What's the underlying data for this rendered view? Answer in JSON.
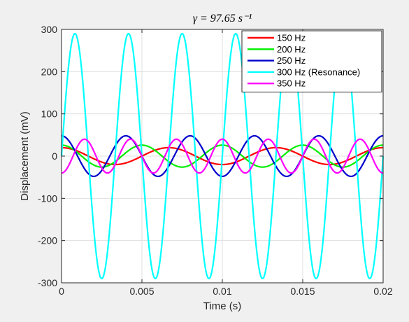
{
  "figure": {
    "background": "#f0f0f0",
    "axes_background": "#ffffff",
    "grid_color": "#dfdfdf",
    "axis_color": "#262626"
  },
  "chart_data": {
    "type": "line",
    "title": "γ = 97.65 s⁻¹",
    "xlabel": "Time (s)",
    "ylabel": "Displacement (mV)",
    "xlim": [
      0,
      0.02
    ],
    "ylim": [
      -300,
      300
    ],
    "xticks": [
      0,
      0.005,
      0.01,
      0.015,
      0.02
    ],
    "xtick_labels": [
      "0",
      "0.005",
      "0.01",
      "0.015",
      "0.02"
    ],
    "yticks": [
      -300,
      -200,
      -100,
      0,
      100,
      200,
      300
    ],
    "ytick_labels": [
      "-300",
      "-200",
      "-100",
      "0",
      "100",
      "200",
      "300"
    ],
    "grid": true,
    "legend_position": "top-right",
    "series": [
      {
        "name": "150 Hz",
        "frequency_hz": 150,
        "amplitude": 20,
        "phase_rad": 1.5708,
        "color": "#ff0000"
      },
      {
        "name": "200 Hz",
        "frequency_hz": 200,
        "amplitude": 26,
        "phase_rad": 1.5708,
        "color": "#00ee00"
      },
      {
        "name": "250 Hz",
        "frequency_hz": 250,
        "amplitude": 48,
        "phase_rad": 1.5708,
        "color": "#0000cd"
      },
      {
        "name": "300 Hz (Resonance)",
        "frequency_hz": 300,
        "amplitude": 290,
        "phase_rad": 0,
        "color": "#00ffff"
      },
      {
        "name": "350 Hz",
        "frequency_hz": 350,
        "amplitude": 40,
        "phase_rad": -1.5708,
        "color": "#ff00ff"
      }
    ]
  }
}
